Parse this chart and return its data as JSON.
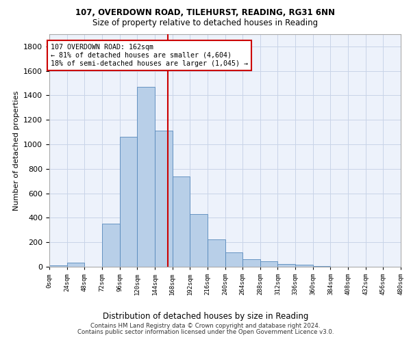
{
  "title_line1": "107, OVERDOWN ROAD, TILEHURST, READING, RG31 6NN",
  "title_line2": "Size of property relative to detached houses in Reading",
  "xlabel": "Distribution of detached houses by size in Reading",
  "ylabel": "Number of detached properties",
  "bin_edges": [
    0,
    24,
    48,
    72,
    96,
    120,
    144,
    168,
    192,
    216,
    240,
    264,
    288,
    312,
    336,
    360,
    384,
    408,
    432,
    456,
    480
  ],
  "bar_heights": [
    10,
    35,
    0,
    350,
    1060,
    1470,
    1110,
    740,
    430,
    225,
    115,
    60,
    45,
    20,
    15,
    5,
    2,
    1,
    1,
    0
  ],
  "bar_color": "#b8cfe8",
  "bar_edge_color": "#5588bb",
  "vline_x": 162,
  "vline_color": "#cc0000",
  "annotation_text": "107 OVERDOWN ROAD: 162sqm\n← 81% of detached houses are smaller (4,604)\n18% of semi-detached houses are larger (1,045) →",
  "annotation_box_facecolor": "#ffffff",
  "annotation_box_edgecolor": "#cc0000",
  "ylim": [
    0,
    1900
  ],
  "yticks": [
    0,
    200,
    400,
    600,
    800,
    1000,
    1200,
    1400,
    1600,
    1800
  ],
  "footer_line1": "Contains HM Land Registry data © Crown copyright and database right 2024.",
  "footer_line2": "Contains public sector information licensed under the Open Government Licence v3.0.",
  "grid_color": "#c8d4e8",
  "background_color": "#edf2fb"
}
